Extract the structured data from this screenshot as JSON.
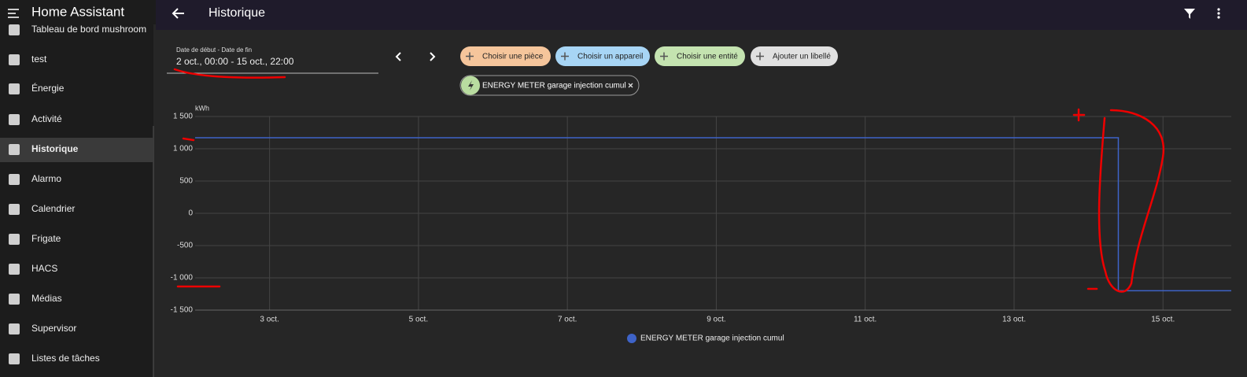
{
  "sidebar": {
    "title": "Home Assistant",
    "items": [
      "Tableau de bord mushroom",
      "test",
      "Énergie",
      "Activité",
      "Historique",
      "Alarmo",
      "Calendrier",
      "Frigate",
      "HACS",
      "Médias",
      "Supervisor",
      "Listes de tâches"
    ]
  },
  "header": {
    "title": "Historique"
  },
  "filters": {
    "date_label": "Date de début - Date de fin",
    "date_range": "2 oct., 00:00 - 15 oct., 22:00",
    "chips": [
      "Choisir une pièce",
      "Choisir un appareil",
      "Choisir une entité",
      "Ajouter un libellé"
    ],
    "entity": "ENERGY METER garage injection cumul"
  },
  "chart_data": {
    "type": "line",
    "y_label": "kWh",
    "xlim": [
      2,
      15.9167
    ],
    "xticks": [
      {
        "value": 3,
        "label": "3 oct."
      },
      {
        "value": 5,
        "label": "5 oct."
      },
      {
        "value": 7,
        "label": "7 oct."
      },
      {
        "value": 9,
        "label": "9 oct."
      },
      {
        "value": 11,
        "label": "11 oct."
      },
      {
        "value": 13,
        "label": "13 oct."
      },
      {
        "value": 15,
        "label": "15 oct."
      }
    ],
    "ylim": [
      -1500,
      1500
    ],
    "yticks": [
      {
        "value": -1500,
        "label": "-1 500"
      },
      {
        "value": -1000,
        "label": "-1 000"
      },
      -500,
      0,
      500,
      {
        "value": 1000,
        "label": "1 000"
      },
      {
        "value": 1500,
        "label": "1 500"
      }
    ],
    "grid": true,
    "series": [
      {
        "name": "ENERGY METER garage injection cumul",
        "color": "#3e63c8",
        "x": [
          2,
          14.4,
          14.4,
          15.9167
        ],
        "values": [
          1170,
          1170,
          -1200,
          -1200
        ]
      }
    ]
  }
}
